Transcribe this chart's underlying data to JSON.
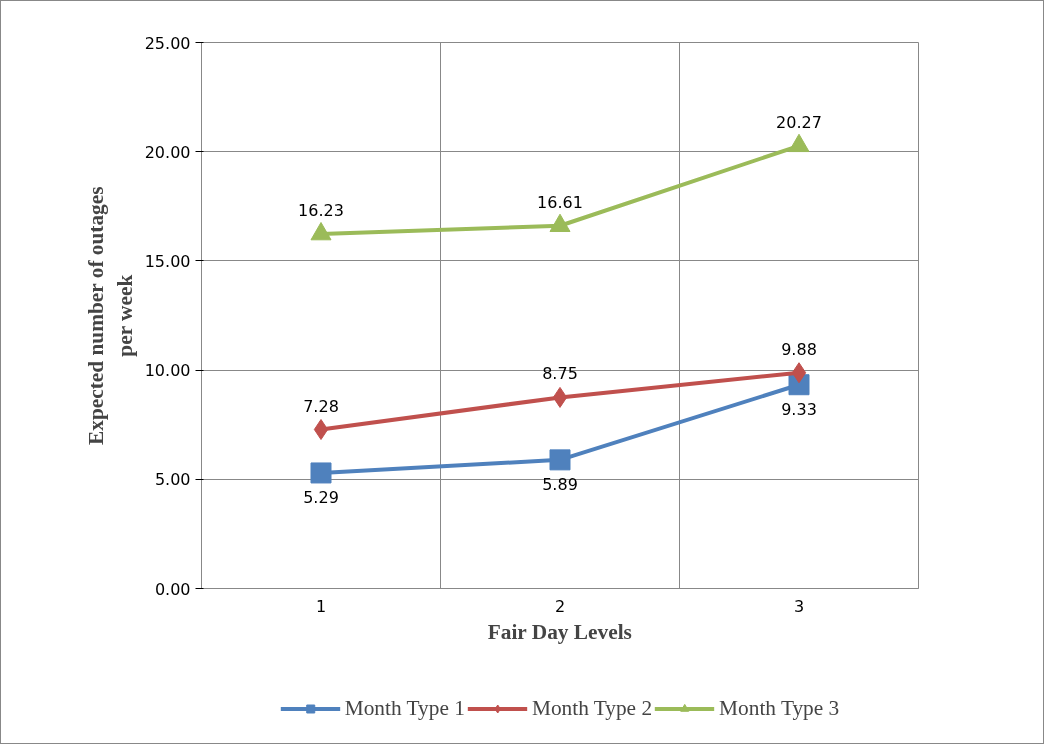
{
  "chart_data": {
    "type": "line",
    "xlabel": "Fair Day Levels",
    "ylabel": "Expected number of outages\nper week",
    "categories": [
      "1",
      "2",
      "3"
    ],
    "series": [
      {
        "name": "Month Type 1",
        "color": "#4f81bd",
        "marker": "square",
        "values": [
          5.29,
          5.89,
          9.33
        ]
      },
      {
        "name": "Month Type 2",
        "color": "#c0504d",
        "marker": "diamond",
        "values": [
          7.28,
          8.75,
          9.88
        ]
      },
      {
        "name": "Month Type 3",
        "color": "#9bbb59",
        "marker": "triangle",
        "values": [
          16.23,
          16.61,
          20.27
        ]
      }
    ],
    "ylim": [
      0,
      25
    ],
    "yticks": [
      {
        "value": 0,
        "label": "0.00"
      },
      {
        "value": 5,
        "label": "5.00"
      },
      {
        "value": 10,
        "label": "10.00"
      },
      {
        "value": 15,
        "label": "15.00"
      },
      {
        "value": 20,
        "label": "20.00"
      },
      {
        "value": 25,
        "label": "25.00"
      }
    ],
    "grid": true,
    "legend": "bottom",
    "data_labels": true
  }
}
